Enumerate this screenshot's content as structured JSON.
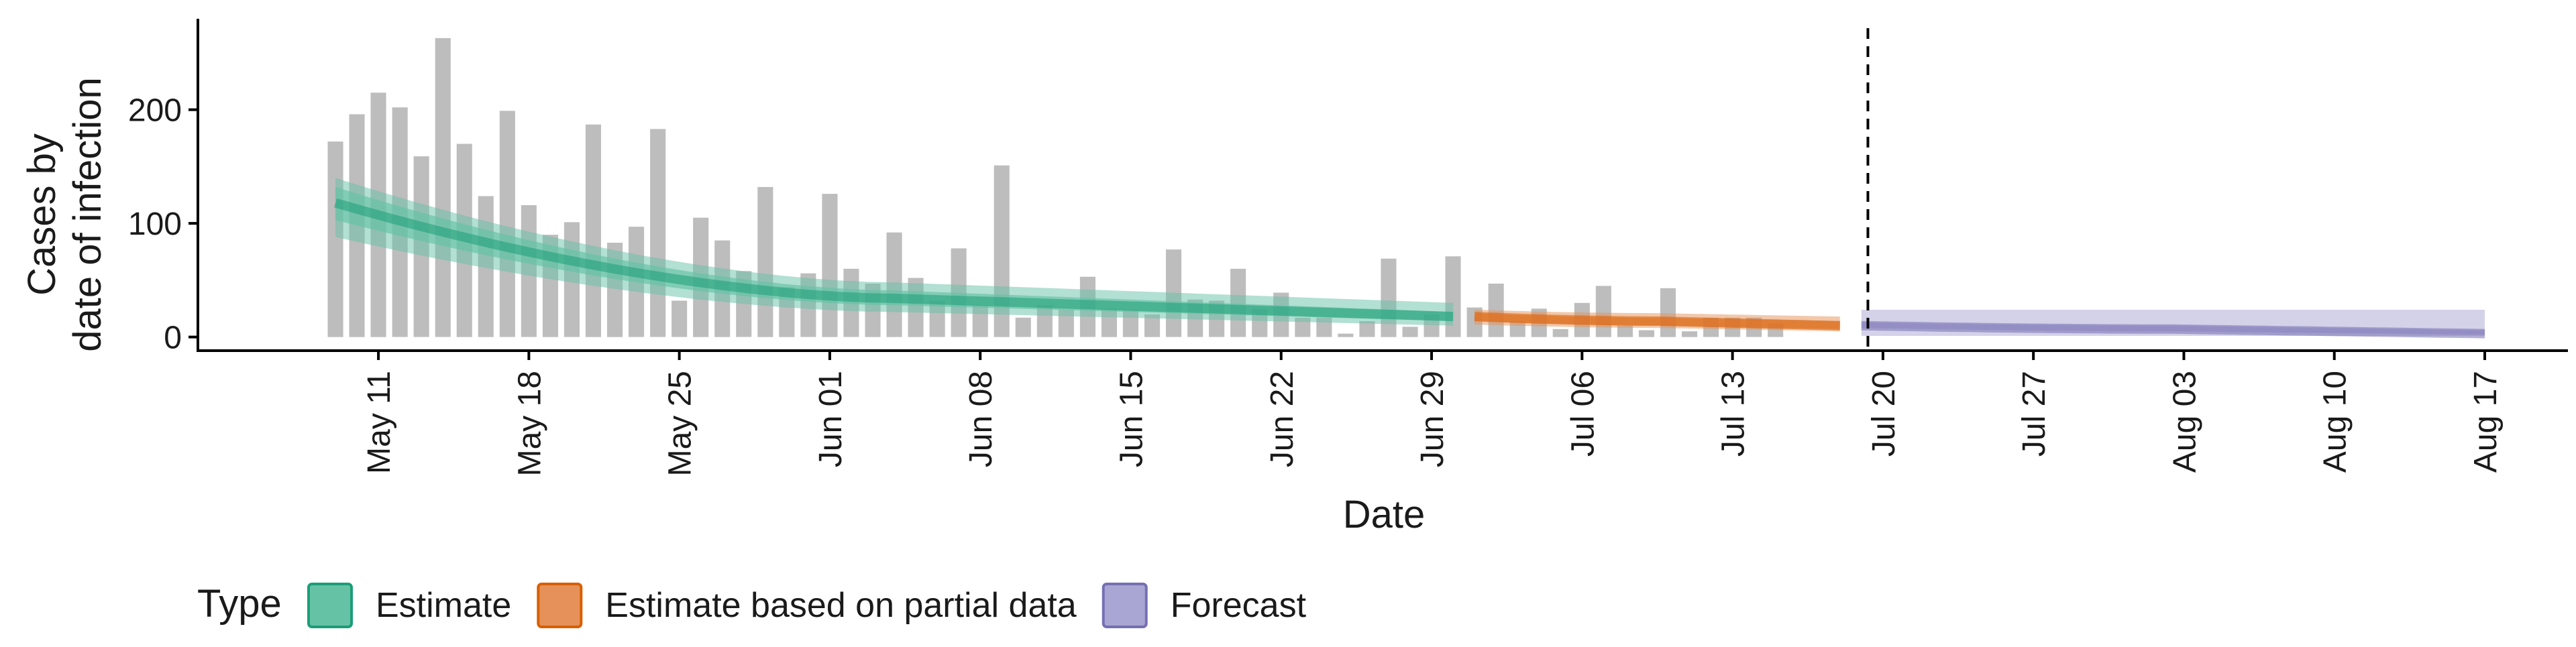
{
  "chart_data": {
    "type": "bar",
    "xlabel": "Date",
    "ylabel_lines": [
      "Cases by",
      "date of infection"
    ],
    "ylim": [
      -12,
      280
    ],
    "y_ticks": [
      0,
      100,
      200
    ],
    "x_start": "2020-05-09",
    "x_end": "2020-08-17",
    "x_ticks": [
      {
        "date": "2020-05-11",
        "label": "May 11"
      },
      {
        "date": "2020-05-18",
        "label": "May 18"
      },
      {
        "date": "2020-05-25",
        "label": "May 25"
      },
      {
        "date": "2020-06-01",
        "label": "Jun 01"
      },
      {
        "date": "2020-06-08",
        "label": "Jun 08"
      },
      {
        "date": "2020-06-15",
        "label": "Jun 15"
      },
      {
        "date": "2020-06-22",
        "label": "Jun 22"
      },
      {
        "date": "2020-06-29",
        "label": "Jun 29"
      },
      {
        "date": "2020-07-06",
        "label": "Jul 06"
      },
      {
        "date": "2020-07-13",
        "label": "Jul 13"
      },
      {
        "date": "2020-07-20",
        "label": "Jul 20"
      },
      {
        "date": "2020-07-27",
        "label": "Jul 27"
      },
      {
        "date": "2020-08-03",
        "label": "Aug 03"
      },
      {
        "date": "2020-08-10",
        "label": "Aug 10"
      },
      {
        "date": "2020-08-17",
        "label": "Aug 17"
      }
    ],
    "reported_cases": {
      "color": "#bdbdbd",
      "start_date": "2020-05-09",
      "values": [
        172,
        196,
        215,
        202,
        159,
        263,
        170,
        124,
        199,
        116,
        90,
        101,
        187,
        83,
        97,
        183,
        32,
        105,
        85,
        58,
        132,
        44,
        56,
        126,
        60,
        47,
        92,
        52,
        32,
        78,
        28,
        151,
        17,
        28,
        24,
        53,
        25,
        24,
        20,
        77,
        33,
        32,
        60,
        25,
        39,
        17,
        17,
        3,
        14,
        69,
        9,
        20,
        71,
        26,
        47,
        14,
        25,
        7,
        30,
        45,
        10,
        6,
        43,
        5,
        17,
        17,
        17,
        12
      ]
    },
    "forecast_cutoff_date": "2020-07-19",
    "series": [
      {
        "name": "Estimate",
        "color": "#1b9e77",
        "fill": "#66c2a5",
        "start_date": "2020-05-09",
        "end_date": "2020-06-30",
        "median": [
          118,
          34,
          18
        ],
        "ci50": [
          [
            103,
            132
          ],
          [
            28,
            41
          ],
          [
            14,
            22
          ]
        ],
        "ci90": [
          [
            88,
            140
          ],
          [
            22,
            48
          ],
          [
            10,
            30
          ]
        ]
      },
      {
        "name": "Estimate based on partial data",
        "color": "#d95f02",
        "fill": "#e6915a",
        "start_date": "2020-07-01",
        "end_date": "2020-07-18",
        "median": [
          18,
          14,
          10
        ],
        "ci50": [
          [
            14,
            21
          ],
          [
            10,
            17
          ],
          [
            7,
            14
          ]
        ],
        "ci90": [
          [
            11,
            24
          ],
          [
            8,
            21
          ],
          [
            5,
            18
          ]
        ]
      },
      {
        "name": "Forecast",
        "color": "#7570b3",
        "fill": "#a9a6d3",
        "start_date": "2020-07-19",
        "end_date": "2020-08-17",
        "median": [
          10,
          7,
          3
        ],
        "ci50": [
          [
            8,
            13
          ],
          [
            5,
            10
          ],
          [
            2,
            6
          ]
        ],
        "ci90": [
          [
            1,
            24
          ],
          [
            1,
            24
          ],
          [
            1,
            24
          ]
        ]
      }
    ],
    "legend": {
      "title": "Type",
      "position": "bottom",
      "entries": [
        "Estimate",
        "Estimate based on partial data",
        "Forecast"
      ]
    },
    "grid": false
  }
}
